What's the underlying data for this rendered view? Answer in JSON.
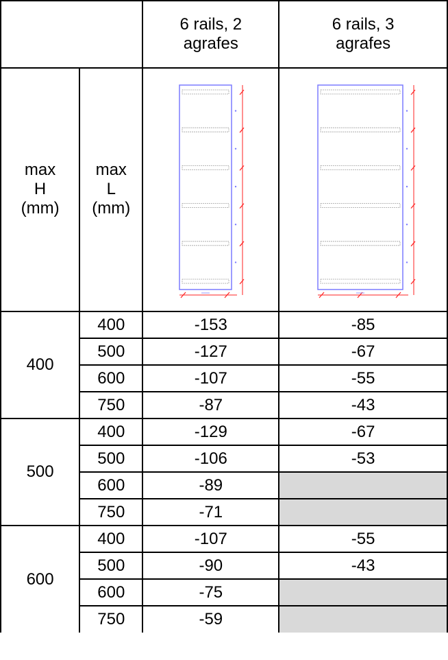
{
  "header": {
    "col3": "6 rails, 2 agrafes",
    "col4": "6 rails, 3 agrafes",
    "max_h": "max H (mm)",
    "max_l": "max L (mm)",
    "max_h_lines": [
      "max",
      "H",
      "(mm)"
    ],
    "max_l_lines": [
      "max",
      "L",
      "(mm)"
    ]
  },
  "diagram_colors": {
    "frame": "#7b7bff",
    "rail": "#a0a0a0",
    "dimension": "#ff2020"
  },
  "groups": [
    {
      "h": "400",
      "rows": [
        {
          "l": "400",
          "v2": "-153",
          "v3": "-85"
        },
        {
          "l": "500",
          "v2": "-127",
          "v3": "-67"
        },
        {
          "l": "600",
          "v2": "-107",
          "v3": "-55"
        },
        {
          "l": "750",
          "v2": "-87",
          "v3": "-43"
        }
      ]
    },
    {
      "h": "500",
      "rows": [
        {
          "l": "400",
          "v2": "-129",
          "v3": "-67"
        },
        {
          "l": "500",
          "v2": "-106",
          "v3": "-53"
        },
        {
          "l": "600",
          "v2": "-89",
          "v3": ""
        },
        {
          "l": "750",
          "v2": "-71",
          "v3": ""
        }
      ]
    },
    {
      "h": "600",
      "rows": [
        {
          "l": "400",
          "v2": "-107",
          "v3": "-55"
        },
        {
          "l": "500",
          "v2": "-90",
          "v3": "-43"
        },
        {
          "l": "600",
          "v2": "-75",
          "v3": ""
        },
        {
          "l": "750",
          "v2": "-59",
          "v3": ""
        }
      ]
    }
  ]
}
